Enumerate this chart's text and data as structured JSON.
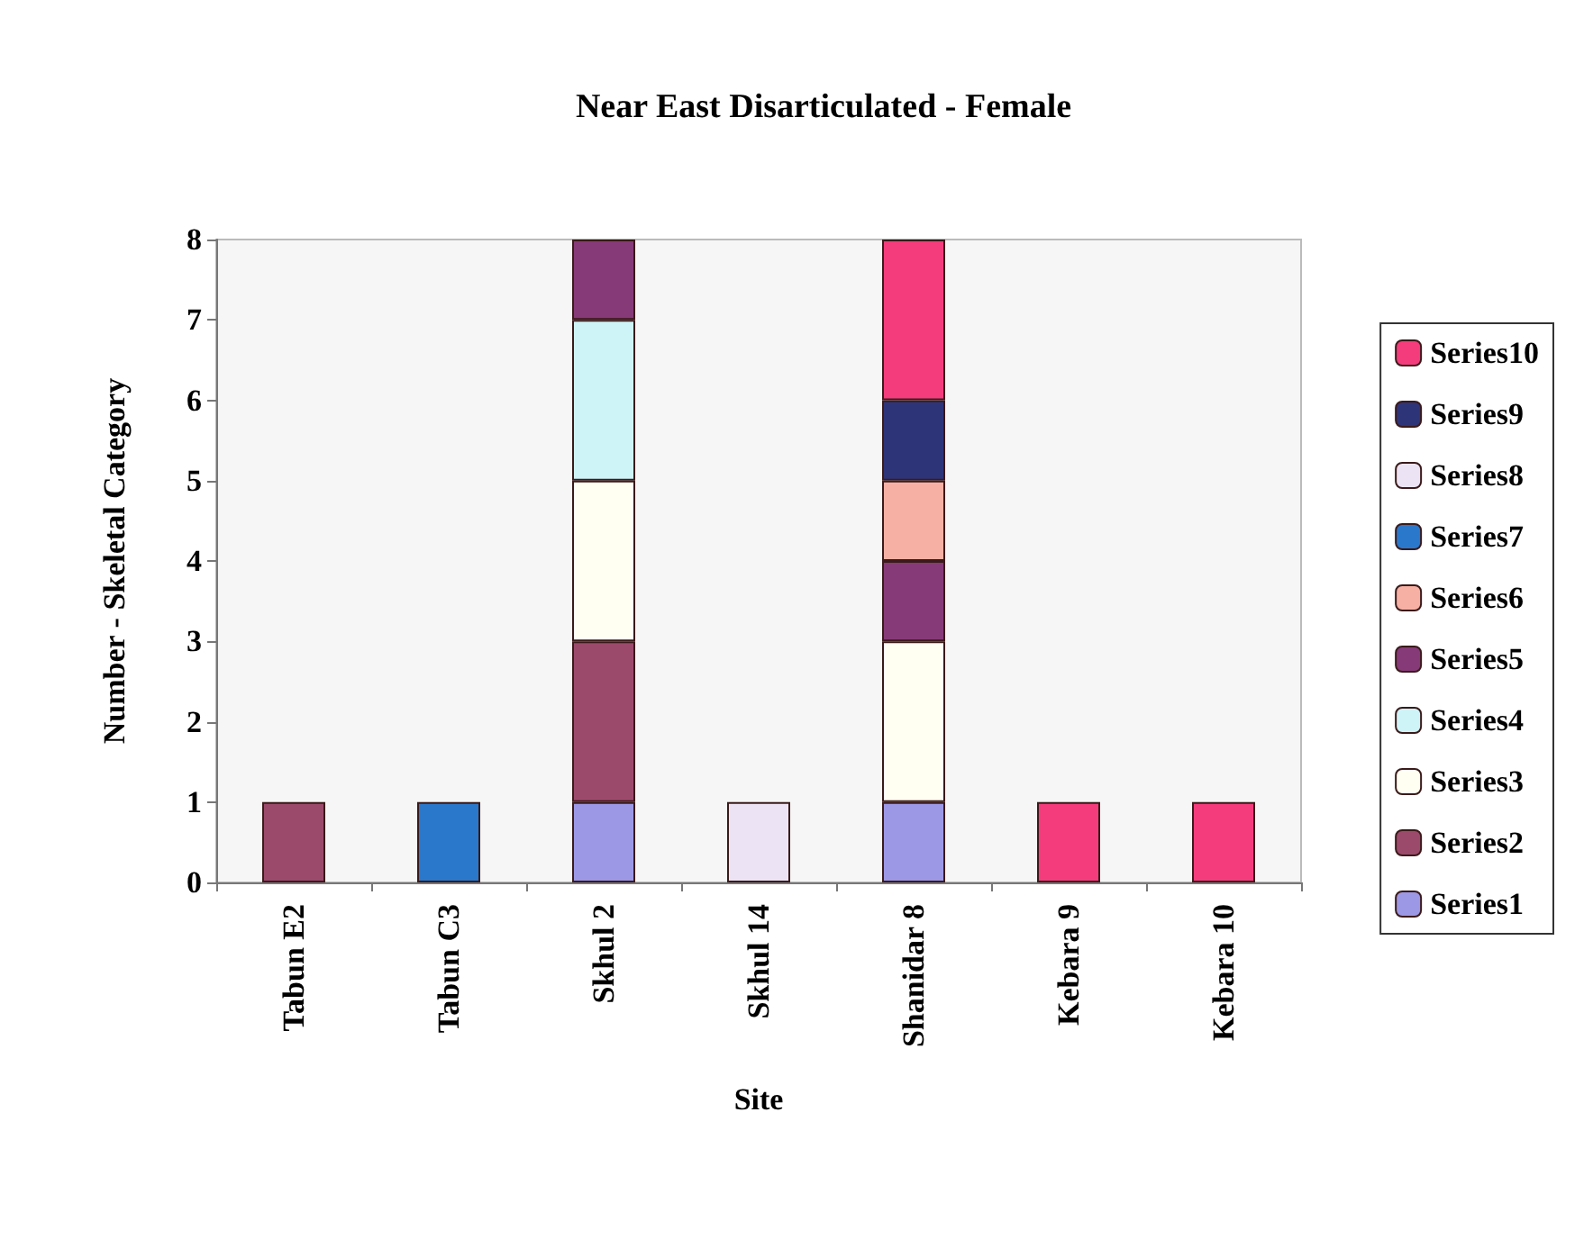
{
  "chart_data": {
    "type": "bar",
    "stacked": true,
    "title": "Near East Disarticulated - Female",
    "xlabel": "Site",
    "ylabel": "Number - Skeletal Category",
    "categories": [
      "Tabun E2",
      "Tabun C3",
      "Skhul 2",
      "Skhul 14",
      "Shanidar 8",
      "Kebara 9",
      "Kebara 10"
    ],
    "series": [
      {
        "name": "Series1",
        "color": "#9c98e6",
        "values": [
          0,
          0,
          1,
          0,
          1,
          0,
          0
        ]
      },
      {
        "name": "Series2",
        "color": "#9c4a6c",
        "values": [
          1,
          0,
          2,
          0,
          0,
          0,
          0
        ]
      },
      {
        "name": "Series3",
        "color": "#fffff2",
        "values": [
          0,
          0,
          2,
          0,
          2,
          0,
          0
        ]
      },
      {
        "name": "Series4",
        "color": "#cef4f8",
        "values": [
          0,
          0,
          2,
          0,
          0,
          0,
          0
        ]
      },
      {
        "name": "Series5",
        "color": "#863a78",
        "values": [
          0,
          0,
          1,
          0,
          1,
          0,
          0
        ]
      },
      {
        "name": "Series6",
        "color": "#f6b0a4",
        "values": [
          0,
          0,
          0,
          0,
          1,
          0,
          0
        ]
      },
      {
        "name": "Series7",
        "color": "#2a78cc",
        "values": [
          0,
          1,
          0,
          0,
          0,
          0,
          0
        ]
      },
      {
        "name": "Series8",
        "color": "#ece4f4",
        "values": [
          0,
          0,
          0,
          1,
          0,
          0,
          0
        ]
      },
      {
        "name": "Series9",
        "color": "#2e3478",
        "values": [
          0,
          0,
          0,
          0,
          1,
          0,
          0
        ]
      },
      {
        "name": "Series10",
        "color": "#f43c7c",
        "values": [
          0,
          0,
          0,
          0,
          2,
          1,
          1
        ]
      }
    ],
    "ylim": [
      0,
      8
    ],
    "yticks": [
      0,
      1,
      2,
      3,
      4,
      5,
      6,
      7,
      8
    ],
    "grid": false,
    "legend": "right"
  }
}
